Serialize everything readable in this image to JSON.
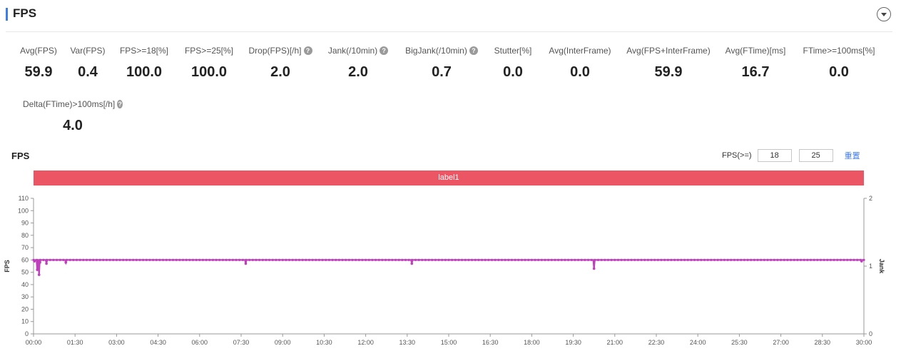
{
  "panel": {
    "title": "FPS"
  },
  "metrics_row1": [
    {
      "label": "Avg(FPS)",
      "value": "59.9",
      "help": false
    },
    {
      "label": "Var(FPS)",
      "value": "0.4",
      "help": false
    },
    {
      "label": "FPS>=18[%]",
      "value": "100.0",
      "help": false
    },
    {
      "label": "FPS>=25[%]",
      "value": "100.0",
      "help": false
    },
    {
      "label": "Drop(FPS)[/h]",
      "value": "2.0",
      "help": true
    },
    {
      "label": "Jank(/10min)",
      "value": "2.0",
      "help": true
    },
    {
      "label": "BigJank(/10min)",
      "value": "0.7",
      "help": true
    },
    {
      "label": "Stutter[%]",
      "value": "0.0",
      "help": false
    },
    {
      "label": "Avg(InterFrame)",
      "value": "0.0",
      "help": false
    },
    {
      "label": "Avg(FPS+InterFrame)",
      "value": "59.9",
      "help": false
    },
    {
      "label": "Avg(FTime)[ms]",
      "value": "16.7",
      "help": false
    },
    {
      "label": "FTime>=100ms[%]",
      "value": "0.0",
      "help": false
    }
  ],
  "metrics_row2": [
    {
      "label": "Delta(FTime)>100ms[/h]",
      "value": "4.0",
      "help": true
    }
  ],
  "chart_section": {
    "title": "FPS",
    "filter_label": "FPS(>=)",
    "threshold_low": "18",
    "threshold_high": "25",
    "reset_label": "重置",
    "band_label": "label1",
    "band_color": "#ec5563"
  },
  "chart_data": {
    "type": "line",
    "ylabel": "FPS",
    "y2label": "Jank",
    "ylim": [
      0,
      110
    ],
    "y2lim": [
      0,
      2
    ],
    "y_ticks": [
      0,
      10,
      20,
      30,
      40,
      50,
      60,
      70,
      80,
      90,
      100,
      110
    ],
    "y2_ticks": [
      0,
      1,
      2
    ],
    "x_ticks": [
      "00:00",
      "01:30",
      "03:00",
      "04:30",
      "06:00",
      "07:30",
      "09:00",
      "10:30",
      "12:00",
      "13:30",
      "15:00",
      "16:30",
      "18:00",
      "19:30",
      "21:00",
      "22:30",
      "24:00",
      "25:30",
      "27:00",
      "28:30",
      "30:00"
    ],
    "series": [
      {
        "color": "#c03fbd",
        "baseline": 60,
        "points": [
          {
            "t": "00:02",
            "fps": 59
          },
          {
            "t": "00:08",
            "fps": 52
          },
          {
            "t": "00:12",
            "fps": 48
          },
          {
            "t": "00:14",
            "fps": 58
          },
          {
            "t": "00:28",
            "fps": 57
          },
          {
            "t": "01:10",
            "fps": 58
          },
          {
            "t": "07:40",
            "fps": 57
          },
          {
            "t": "13:40",
            "fps": 57
          },
          {
            "t": "20:15",
            "fps": 53
          },
          {
            "t": "29:55",
            "fps": 59
          }
        ]
      }
    ],
    "legend": "none",
    "grid": false
  },
  "colors": {
    "accent": "#3d7cf0",
    "series": "#c03fbd",
    "band": "#ec5563"
  }
}
